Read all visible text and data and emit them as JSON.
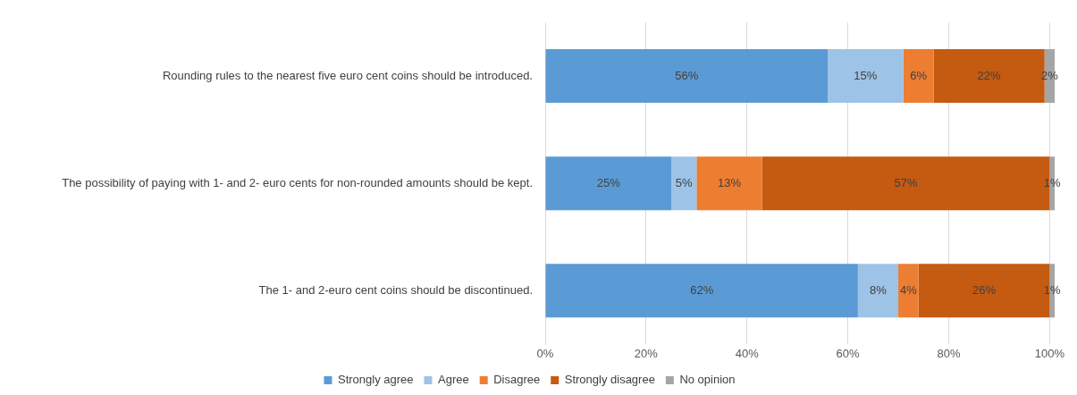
{
  "chart_data": {
    "type": "bar",
    "orientation": "horizontal",
    "stacked": true,
    "categories": [
      "Rounding rules to the nearest five euro cent coins should be introduced.",
      "The possibility of paying with 1- and 2- euro cents for non-rounded amounts should be kept.",
      "The 1- and 2-euro cent coins should be discontinued."
    ],
    "series": [
      {
        "name": "Strongly agree",
        "color": "#5b9bd5",
        "values": [
          56,
          25,
          62
        ],
        "value_labels": [
          "56%",
          "25%",
          "62%"
        ]
      },
      {
        "name": "Agree",
        "color": "#9dc3e6",
        "values": [
          15,
          5,
          8
        ],
        "value_labels": [
          "15%",
          "5%",
          "8%"
        ]
      },
      {
        "name": "Disagree",
        "color": "#ed7d31",
        "values": [
          6,
          13,
          4
        ],
        "value_labels": [
          "6%",
          "13%",
          "4%"
        ]
      },
      {
        "name": "Strongly disagree",
        "color": "#c55a11",
        "values": [
          22,
          57,
          26
        ],
        "value_labels": [
          "22%",
          "57%",
          "26%"
        ]
      },
      {
        "name": "No opinion",
        "color": "#a5a5a5",
        "values": [
          2,
          1,
          1
        ],
        "value_labels": [
          "2%",
          "1%",
          "1%"
        ]
      }
    ],
    "xlim": [
      0,
      101
    ],
    "xticks": [
      {
        "value": 0,
        "label": "0%"
      },
      {
        "value": 20,
        "label": "20%"
      },
      {
        "value": 40,
        "label": "40%"
      },
      {
        "value": 60,
        "label": "60%"
      },
      {
        "value": 80,
        "label": "80%"
      },
      {
        "value": 100,
        "label": "100%"
      }
    ],
    "grid": "x",
    "legend": "bottom"
  }
}
